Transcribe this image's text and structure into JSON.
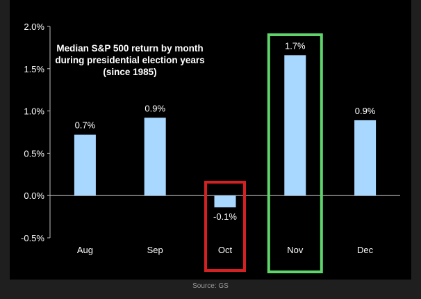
{
  "chart_data": {
    "type": "bar",
    "title_lines": [
      "Median S&P 500 return by month",
      "during presidential election years",
      "(since 1985)"
    ],
    "categories": [
      "Aug",
      "Sep",
      "Oct",
      "Nov",
      "Dec"
    ],
    "values": [
      0.72,
      0.92,
      -0.14,
      1.66,
      0.89
    ],
    "data_labels": [
      "0.7%",
      "0.9%",
      "-0.1%",
      "1.7%",
      "0.9%"
    ],
    "ylim": [
      -0.5,
      2.0
    ],
    "yticks": [
      2.0,
      1.5,
      1.0,
      0.5,
      0.0,
      -0.5
    ],
    "ytick_labels": [
      "2.0%",
      "1.5%",
      "1.0%",
      "0.5%",
      "0.0%",
      "-0.5%"
    ],
    "grid": false,
    "highlights": [
      {
        "category": "Oct",
        "color": "#d42020"
      },
      {
        "category": "Nov",
        "color": "#5ed46a"
      }
    ]
  },
  "colors": {
    "bar": "#a8d8ff",
    "background": "#000000",
    "axis": "#bfbfbf"
  },
  "source": "Source: GS"
}
